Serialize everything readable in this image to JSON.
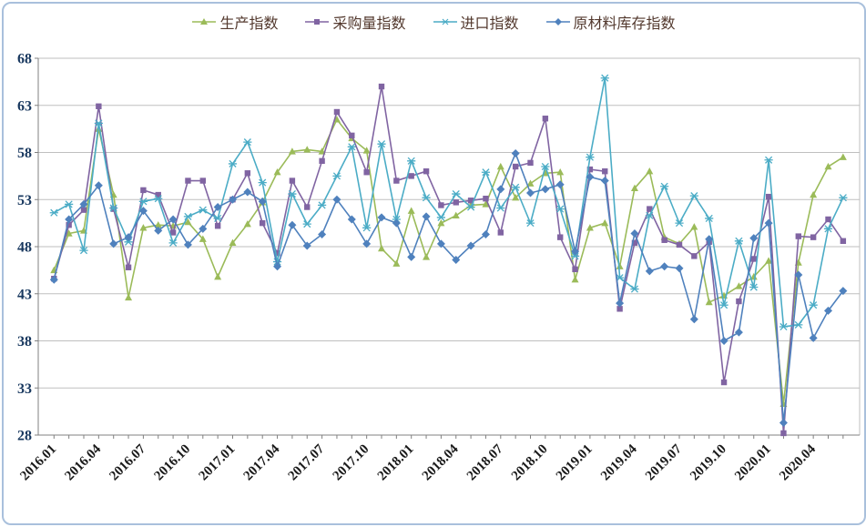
{
  "chart_data": {
    "type": "line",
    "title": "",
    "ylim": [
      28,
      68
    ],
    "ytick_step": 5,
    "y_ticks": [
      28,
      33,
      38,
      43,
      48,
      53,
      58,
      63,
      68
    ],
    "grid": true,
    "legend_position": "top",
    "x_label_every_n_months": 3,
    "x_shown_labels": [
      "2016.01",
      "2016.04",
      "2016.07",
      "2016.10",
      "2017.01",
      "2017.04",
      "2017.07",
      "2017.10",
      "2018.01",
      "2018.04",
      "2018.07",
      "2018.10",
      "2019.01",
      "2019.04",
      "2019.07",
      "2019.10",
      "2020.01",
      "2020.04"
    ],
    "x": [
      "2016.01",
      "2016.02",
      "2016.03",
      "2016.04",
      "2016.05",
      "2016.06",
      "2016.07",
      "2016.08",
      "2016.09",
      "2016.10",
      "2016.11",
      "2016.12",
      "2017.01",
      "2017.02",
      "2017.03",
      "2017.04",
      "2017.05",
      "2017.06",
      "2017.07",
      "2017.08",
      "2017.09",
      "2017.10",
      "2017.11",
      "2017.12",
      "2018.01",
      "2018.02",
      "2018.03",
      "2018.04",
      "2018.05",
      "2018.06",
      "2018.07",
      "2018.08",
      "2018.09",
      "2018.10",
      "2018.11",
      "2018.12",
      "2019.01",
      "2019.02",
      "2019.03",
      "2019.04",
      "2019.05",
      "2019.06",
      "2019.07",
      "2019.08",
      "2019.09",
      "2019.10",
      "2019.11",
      "2019.12",
      "2020.01",
      "2020.02",
      "2020.03",
      "2020.04",
      "2020.05",
      "2020.06"
    ],
    "series": [
      {
        "id": "production-index",
        "name": "生产指数",
        "color": "#9BBB59",
        "marker": "triangle",
        "values": [
          45.5,
          49.4,
          49.7,
          60.5,
          53.5,
          42.6,
          50.0,
          50.3,
          50.2,
          50.6,
          48.8,
          44.8,
          48.4,
          50.4,
          52.7,
          55.9,
          58.1,
          58.3,
          58.1,
          61.5,
          59.5,
          58.2,
          47.8,
          46.2,
          51.8,
          46.9,
          50.5,
          51.3,
          52.4,
          52.5,
          56.5,
          53.2,
          54.7,
          55.8,
          55.9,
          44.5,
          50.0,
          50.5,
          45.9,
          54.2,
          56.0,
          49.0,
          48.3,
          50.1,
          42.1,
          42.8,
          43.8,
          44.8,
          46.5,
          31.3,
          46.3,
          53.5,
          56.5,
          57.5
        ]
      },
      {
        "id": "purchasing-volume-index",
        "name": "采购量指数",
        "color": "#8064A2",
        "marker": "square",
        "values": [
          44.6,
          50.3,
          51.9,
          62.9,
          52.0,
          45.8,
          54.0,
          53.5,
          49.5,
          55.0,
          55.0,
          50.2,
          53.0,
          55.8,
          50.5,
          47.3,
          55.0,
          52.2,
          57.1,
          62.3,
          59.8,
          55.9,
          65.0,
          55.0,
          55.5,
          56.0,
          52.4,
          52.7,
          52.9,
          53.1,
          49.5,
          56.5,
          56.9,
          61.6,
          49.0,
          45.6,
          56.2,
          56.0,
          41.4,
          48.4,
          52.0,
          48.7,
          48.2,
          47.0,
          48.5,
          33.6,
          42.2,
          46.7,
          53.3,
          28.2,
          49.1,
          49.0,
          50.9,
          48.6
        ]
      },
      {
        "id": "import-index",
        "name": "进口指数",
        "color": "#4BACC6",
        "marker": "x",
        "values": [
          51.6,
          52.5,
          47.6,
          61.1,
          52.1,
          48.5,
          52.8,
          53.1,
          48.4,
          51.2,
          51.9,
          51.0,
          56.8,
          59.1,
          54.8,
          46.4,
          53.6,
          50.4,
          52.4,
          55.5,
          58.6,
          50.0,
          58.9,
          50.9,
          57.1,
          53.2,
          51.1,
          53.6,
          52.2,
          55.9,
          52.1,
          54.3,
          50.5,
          56.5,
          52.0,
          47.0,
          57.5,
          65.9,
          44.7,
          43.5,
          51.3,
          54.4,
          50.5,
          53.4,
          51.0,
          41.8,
          48.6,
          43.7,
          57.2,
          39.5,
          39.7,
          41.8,
          49.9,
          53.2
        ]
      },
      {
        "id": "raw-material-inventory-index",
        "name": "原材料库存指数",
        "color": "#4F81BD",
        "marker": "diamond",
        "values": [
          44.5,
          50.9,
          52.5,
          54.5,
          48.3,
          49.0,
          51.8,
          49.7,
          50.9,
          48.2,
          49.9,
          52.2,
          53.0,
          53.8,
          52.8,
          45.9,
          50.3,
          48.1,
          49.3,
          53.0,
          50.9,
          48.3,
          51.1,
          50.5,
          46.9,
          51.2,
          48.3,
          46.6,
          48.1,
          49.3,
          54.1,
          57.9,
          53.7,
          54.1,
          54.6,
          47.5,
          55.4,
          55.0,
          42.0,
          49.4,
          45.4,
          45.9,
          45.7,
          40.3,
          48.8,
          38.0,
          38.9,
          48.9,
          50.5,
          29.3,
          45.0,
          38.3,
          41.2,
          43.3
        ]
      }
    ],
    "style": {
      "gridline_color": "#BFBFBF",
      "axis_color": "#808080",
      "ytick_label_color": "#17375E",
      "xtick_label_color": "#1a1a1a",
      "legend_text_color": "#53392E",
      "frame_border_color": "#A9C0DC",
      "background": "#FFFFFF"
    }
  }
}
